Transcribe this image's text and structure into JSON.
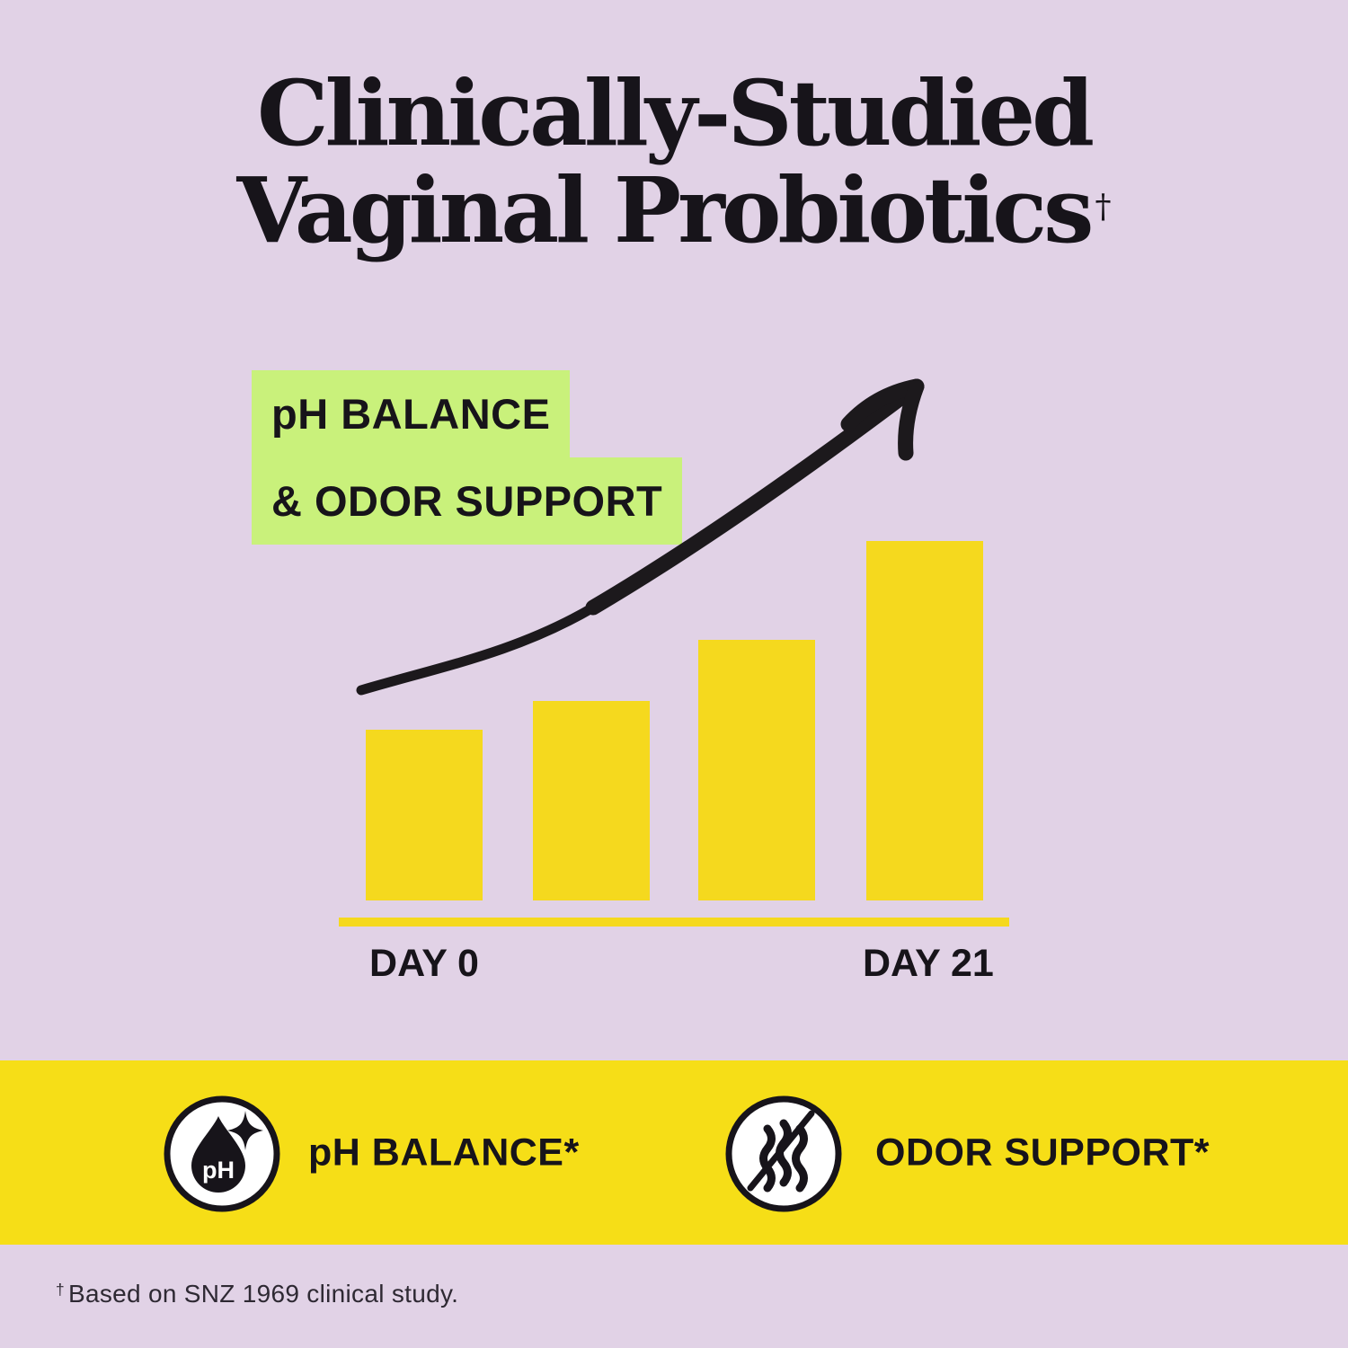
{
  "page": {
    "background": "#E1D2E6",
    "band_yellow": "#F6DE17",
    "accent_green": "#C9F17B",
    "text_black": "#17141A"
  },
  "title": {
    "line1": "Clinically-Studied",
    "line2": "Vaginal Probiotics",
    "dagger": "†"
  },
  "highlight": {
    "line1": "pH BALANCE",
    "line2": "& ODOR SUPPORT"
  },
  "chart_data": {
    "type": "bar",
    "categories": [
      "DAY 0",
      "",
      "",
      "DAY 21"
    ],
    "values": [
      47.5,
      55.5,
      72.5,
      100
    ],
    "unit": "relative bar height, % of tallest bar (y-axis unlabeled)",
    "x_axis_labels": [
      "DAY 0",
      "DAY 21"
    ],
    "title": "",
    "xlabel": "",
    "ylabel": "",
    "grid": false,
    "legend": false,
    "bar_color": "#F5D91E",
    "baseline_color": "#F5D91E",
    "annotation": "hand-drawn black swoosh arrow curving upward from Day 0 toward Day 21"
  },
  "features": [
    {
      "label": "pH BALANCE*",
      "icon": "ph-droplet-sparkle-icon",
      "icon_text": "pH"
    },
    {
      "label": "ODOR SUPPORT*",
      "icon": "no-odor-waves-icon"
    }
  ],
  "footnote": {
    "dagger": "†",
    "text": "Based on SNZ 1969 clinical study."
  }
}
